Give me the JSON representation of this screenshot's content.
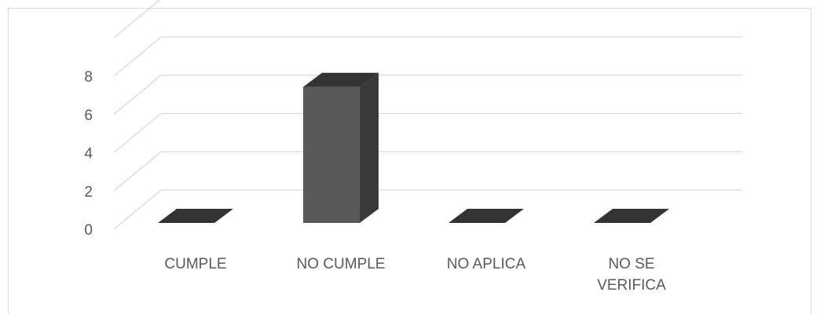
{
  "chart_data": {
    "type": "bar",
    "categories": [
      "CUMPLE",
      "NO CUMPLE",
      "NO APLICA",
      "NO SE VERIFICA"
    ],
    "values": [
      0,
      7,
      0,
      0
    ],
    "title": "",
    "xlabel": "",
    "ylabel": "",
    "ylim": [
      0,
      8
    ],
    "yticks": [
      "0",
      "2",
      "4",
      "6",
      "8"
    ],
    "grid": true,
    "legend": "none",
    "bar_color": "#595959",
    "bar_top_color": "#333333",
    "bar_side_color": "#3a3a3a"
  }
}
